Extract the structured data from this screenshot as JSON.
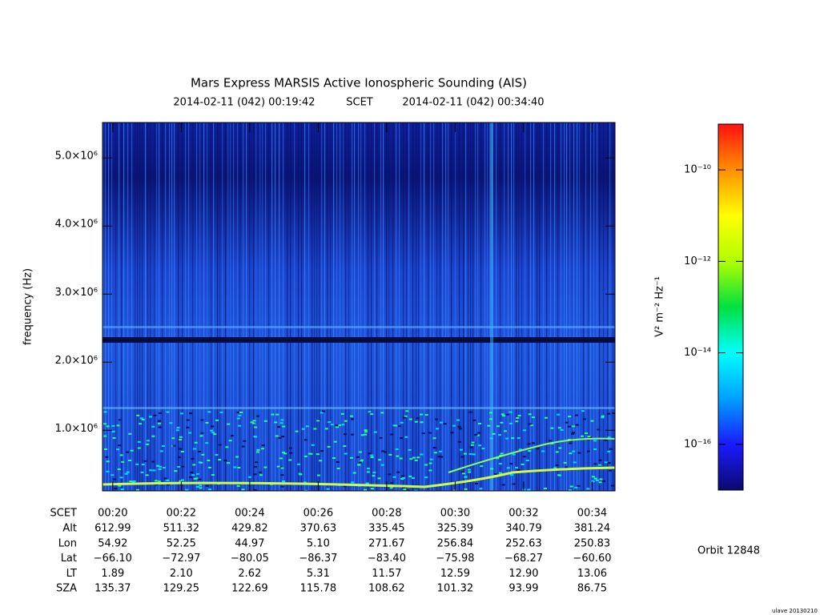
{
  "chart_data": {
    "type": "spectrogram",
    "title": "Mars Express MARSIS Active Ionospheric Sounding (AIS)",
    "subtitle_start": "2014-02-11 (042) 00:19:42",
    "subtitle_mid": "SCET",
    "subtitle_end": "2014-02-11 (042) 00:34:40",
    "y_label": "frequency (Hz)",
    "ylim": [
      110000,
      5520000
    ],
    "yticks": [
      {
        "value": 1000000,
        "label": "1.0×10⁶"
      },
      {
        "value": 2000000,
        "label": "2.0×10⁶"
      },
      {
        "value": 3000000,
        "label": "3.0×10⁶"
      },
      {
        "value": 4000000,
        "label": "4.0×10⁶"
      },
      {
        "value": 5000000,
        "label": "5.0×10⁶"
      }
    ],
    "xlim": [
      19.7,
      34.667
    ],
    "xticks": [
      {
        "value": 20,
        "label": "00:20"
      },
      {
        "value": 22,
        "label": "00:22"
      },
      {
        "value": 24,
        "label": "00:24"
      },
      {
        "value": 26,
        "label": "00:26"
      },
      {
        "value": 28,
        "label": "00:28"
      },
      {
        "value": 30,
        "label": "00:30"
      },
      {
        "value": 32,
        "label": "00:32"
      },
      {
        "value": 34,
        "label": "00:34"
      }
    ],
    "colorbar": {
      "label": "V² m⁻² Hz⁻¹",
      "log": true,
      "lim": [
        1e-17,
        1e-09
      ],
      "ticks": [
        {
          "value": 1e-10,
          "label": "10⁻¹⁰"
        },
        {
          "value": 1e-12,
          "label": "10⁻¹²"
        },
        {
          "value": 1e-14,
          "label": "10⁻¹⁴"
        },
        {
          "value": 1e-16,
          "label": "10⁻¹⁶"
        }
      ],
      "colormap": [
        "#0a0a6e",
        "#1a1aff",
        "#00a0ff",
        "#00ffff",
        "#00e040",
        "#b0ff00",
        "#ffff00",
        "#ff9000",
        "#ff1010"
      ]
    },
    "ephemeris": {
      "scet_label": "SCET",
      "rows": [
        {
          "label": "Alt",
          "values": [
            "612.99",
            "511.32",
            "429.82",
            "370.63",
            "335.45",
            "325.39",
            "340.79",
            "381.24"
          ]
        },
        {
          "label": "Lon",
          "values": [
            "54.92",
            "52.25",
            "44.97",
            "5.10",
            "271.67",
            "256.84",
            "252.63",
            "250.83"
          ]
        },
        {
          "label": "Lat",
          "values": [
            "−66.10",
            "−72.97",
            "−80.05",
            "−86.37",
            "−83.40",
            "−75.98",
            "−68.27",
            "−60.60"
          ]
        },
        {
          "label": "LT",
          "values": [
            "1.89",
            "2.10",
            "2.62",
            "5.31",
            "11.57",
            "12.59",
            "12.90",
            "13.06"
          ]
        },
        {
          "label": "SZA",
          "values": [
            "135.37",
            "129.25",
            "122.69",
            "115.78",
            "108.62",
            "101.32",
            "93.99",
            "86.75"
          ]
        }
      ]
    },
    "orbit": "Orbit 12848",
    "footer": "ulave 20130210"
  }
}
